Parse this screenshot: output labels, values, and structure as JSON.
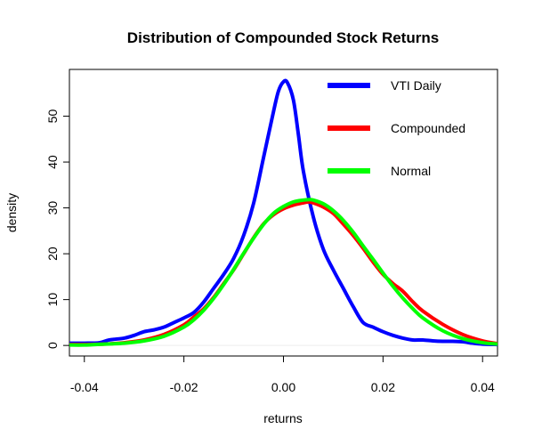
{
  "chart_data": {
    "type": "line",
    "title": "Distribution of Compounded Stock Returns",
    "xlabel": "returns",
    "ylabel": "density",
    "xlim": [
      -0.043,
      0.043
    ],
    "ylim": [
      -2.3,
      60.2
    ],
    "x_ticks": [
      -0.04,
      -0.02,
      0.0,
      0.02,
      0.04
    ],
    "x_tick_labels": [
      "-0.04",
      "-0.02",
      "0.00",
      "0.02",
      "0.04"
    ],
    "y_ticks": [
      0,
      10,
      20,
      30,
      40,
      50
    ],
    "y_tick_labels": [
      "0",
      "10",
      "20",
      "30",
      "40",
      "50"
    ],
    "legend_position": "top-right",
    "series": [
      {
        "name": "VTI Daily",
        "color": "#0000ff",
        "x": [
          -0.043,
          -0.04,
          -0.037,
          -0.035,
          -0.032,
          -0.03,
          -0.028,
          -0.026,
          -0.024,
          -0.022,
          -0.02,
          -0.018,
          -0.016,
          -0.014,
          -0.012,
          -0.01,
          -0.008,
          -0.006,
          -0.004,
          -0.002,
          -0.001,
          0.0,
          0.0008,
          0.002,
          0.003,
          0.004,
          0.006,
          0.008,
          0.01,
          0.012,
          0.014,
          0.016,
          0.018,
          0.02,
          0.022,
          0.024,
          0.026,
          0.028,
          0.03,
          0.032,
          0.034,
          0.036,
          0.038,
          0.04,
          0.043
        ],
        "values": [
          0.5,
          0.5,
          0.6,
          1.2,
          1.6,
          2.2,
          3.0,
          3.4,
          4.0,
          5.0,
          6.0,
          7.2,
          9.5,
          12.5,
          15.5,
          19.0,
          24.0,
          31.0,
          41.0,
          51.0,
          55.5,
          57.5,
          57.3,
          53.5,
          46.0,
          38.0,
          28.0,
          21.0,
          16.5,
          12.5,
          8.5,
          5.0,
          4.0,
          3.0,
          2.2,
          1.6,
          1.2,
          1.2,
          1.0,
          0.9,
          0.9,
          0.8,
          0.5,
          0.3,
          0.2
        ]
      },
      {
        "name": "Compounded",
        "color": "#ff0000",
        "x": [
          -0.043,
          -0.04,
          -0.036,
          -0.032,
          -0.028,
          -0.024,
          -0.02,
          -0.018,
          -0.016,
          -0.014,
          -0.012,
          -0.01,
          -0.008,
          -0.006,
          -0.004,
          -0.002,
          0.0,
          0.002,
          0.004,
          0.005,
          0.006,
          0.008,
          0.01,
          0.012,
          0.014,
          0.016,
          0.018,
          0.02,
          0.022,
          0.024,
          0.026,
          0.028,
          0.032,
          0.036,
          0.04,
          0.043
        ],
        "values": [
          0.2,
          0.2,
          0.3,
          0.6,
          1.2,
          2.4,
          4.5,
          6.2,
          8.0,
          10.5,
          13.5,
          16.5,
          20.0,
          23.5,
          26.5,
          28.5,
          29.8,
          30.6,
          31.1,
          31.3,
          31.1,
          30.2,
          28.8,
          26.5,
          24.0,
          21.2,
          18.2,
          15.5,
          13.5,
          11.8,
          9.5,
          7.5,
          4.6,
          2.4,
          1.0,
          0.4
        ]
      },
      {
        "name": "Normal",
        "color": "#00ff00",
        "x": [
          -0.043,
          -0.04,
          -0.036,
          -0.032,
          -0.028,
          -0.024,
          -0.02,
          -0.018,
          -0.016,
          -0.014,
          -0.012,
          -0.01,
          -0.008,
          -0.006,
          -0.004,
          -0.002,
          0.0,
          0.002,
          0.004,
          0.005,
          0.006,
          0.008,
          0.01,
          0.012,
          0.014,
          0.016,
          0.018,
          0.02,
          0.022,
          0.024,
          0.026,
          0.028,
          0.032,
          0.036,
          0.04,
          0.043
        ],
        "values": [
          0.1,
          0.1,
          0.3,
          0.5,
          1.0,
          2.0,
          4.0,
          5.6,
          7.7,
          10.3,
          13.3,
          16.6,
          20.1,
          23.4,
          26.4,
          28.8,
          30.3,
          31.3,
          31.7,
          31.8,
          31.7,
          30.9,
          29.4,
          27.3,
          24.7,
          21.7,
          18.8,
          15.8,
          12.9,
          10.3,
          8.0,
          6.0,
          3.2,
          1.5,
          0.6,
          0.3
        ]
      }
    ]
  }
}
